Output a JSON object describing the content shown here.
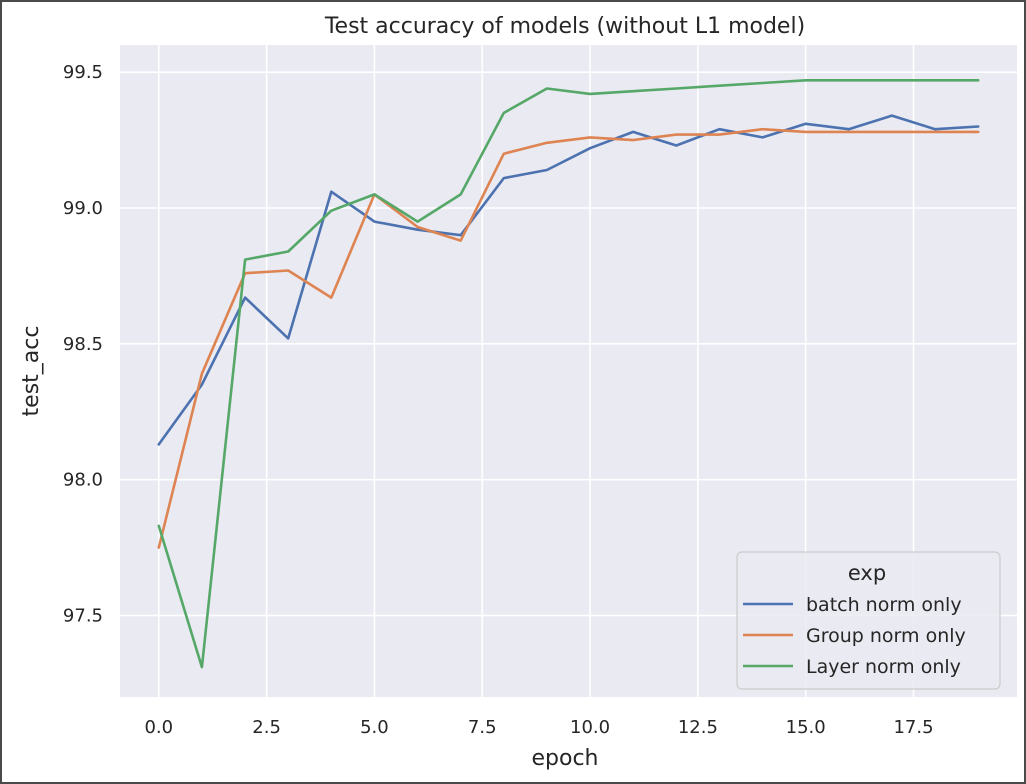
{
  "chart_data": {
    "type": "line",
    "title": "Test accuracy of models (without L1 model)",
    "xlabel": "epoch",
    "ylabel": "test_acc",
    "xlim": [
      -0.9,
      19.9
    ],
    "ylim": [
      97.2,
      99.6
    ],
    "xticks": [
      0.0,
      2.5,
      5.0,
      7.5,
      10.0,
      12.5,
      15.0,
      17.5
    ],
    "xtick_labels": [
      "0.0",
      "2.5",
      "5.0",
      "7.5",
      "10.0",
      "12.5",
      "15.0",
      "17.5"
    ],
    "yticks": [
      97.5,
      98.0,
      98.5,
      99.0,
      99.5
    ],
    "ytick_labels": [
      "97.5",
      "98.0",
      "98.5",
      "99.0",
      "99.5"
    ],
    "grid": true,
    "legend": {
      "title": "exp",
      "placement": "lower-right"
    },
    "x": [
      0,
      1,
      2,
      3,
      4,
      5,
      6,
      7,
      8,
      9,
      10,
      11,
      12,
      13,
      14,
      15,
      16,
      17,
      18,
      19
    ],
    "series": [
      {
        "name": "batch norm only",
        "color": "#4c72b0",
        "values": [
          98.13,
          98.35,
          98.67,
          98.52,
          99.06,
          98.95,
          98.92,
          98.9,
          99.11,
          99.14,
          99.22,
          99.28,
          99.23,
          99.29,
          99.26,
          99.31,
          99.29,
          99.34,
          99.29,
          99.3
        ]
      },
      {
        "name": "Group norm only",
        "color": "#dd8452",
        "values": [
          97.75,
          98.39,
          98.76,
          98.77,
          98.67,
          99.05,
          98.93,
          98.88,
          99.2,
          99.24,
          99.26,
          99.25,
          99.27,
          99.27,
          99.29,
          99.28,
          99.28,
          99.28,
          99.28,
          99.28
        ]
      },
      {
        "name": "Layer norm only",
        "color": "#55a868",
        "values": [
          97.83,
          97.31,
          98.81,
          98.84,
          98.99,
          99.05,
          98.95,
          99.05,
          99.35,
          99.44,
          99.42,
          99.43,
          99.44,
          99.45,
          99.46,
          99.47,
          99.47,
          99.47,
          99.47,
          99.47
        ]
      }
    ]
  }
}
